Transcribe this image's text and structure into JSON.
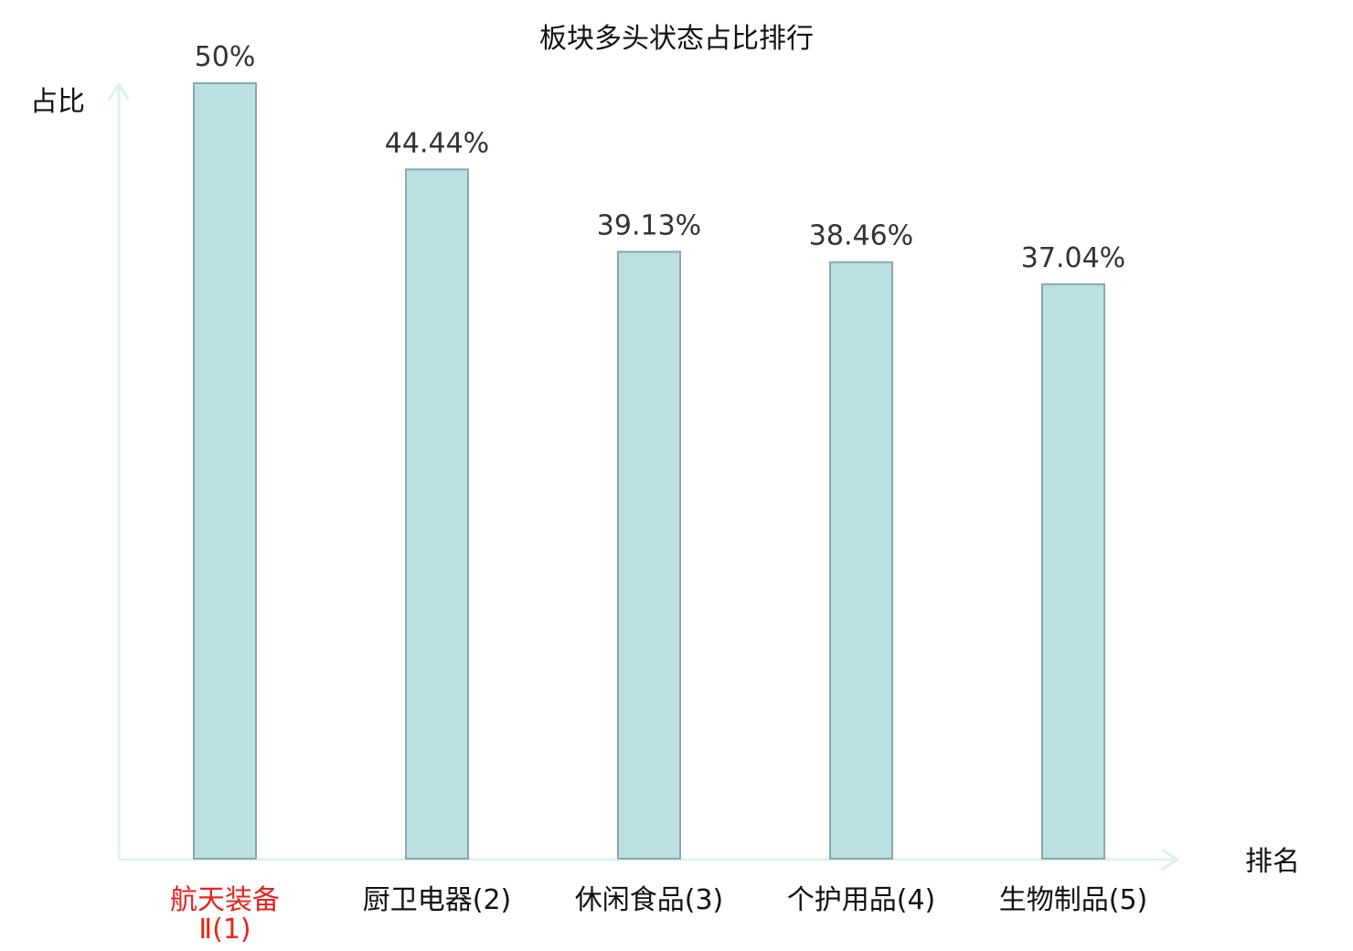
{
  "chart_data": {
    "type": "bar",
    "title": "板块多头状态占比排行",
    "ylabel": "占比",
    "xlabel": "排名",
    "categories": [
      "航天装备Ⅱ(1)",
      "厨卫电器(2)",
      "休闲食品(3)",
      "个护用品(4)",
      "生物制品(5)"
    ],
    "category_lines": [
      [
        "航天装备",
        "Ⅱ(1)"
      ],
      [
        "厨卫电器(2)"
      ],
      [
        "休闲食品(3)"
      ],
      [
        "个护用品(4)"
      ],
      [
        "生物制品(5)"
      ]
    ],
    "values": [
      50,
      44.44,
      39.13,
      38.46,
      37.04
    ],
    "value_labels": [
      "50%",
      "44.44%",
      "39.13%",
      "38.46%",
      "37.04%"
    ],
    "highlight_index": 0,
    "ylim": [
      0,
      50
    ],
    "grid": false,
    "colors": {
      "bar_fill": "#bbe0e2",
      "bar_stroke": "#86a8aa",
      "axis": "#dff1ef",
      "highlight_label": "#e8231c"
    }
  }
}
